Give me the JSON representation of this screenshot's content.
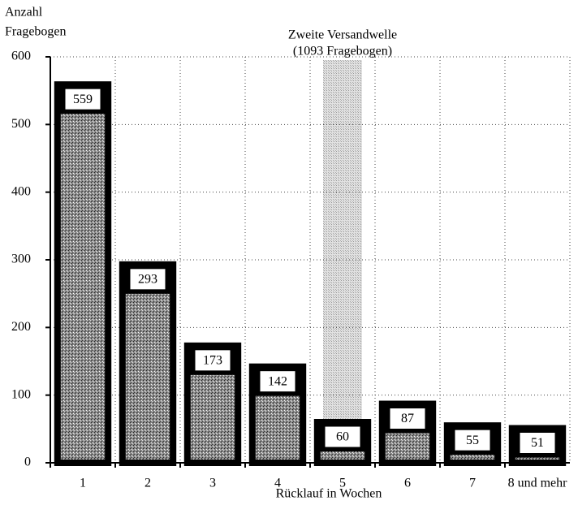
{
  "chart_data": {
    "type": "bar",
    "y_label": [
      "Anzahl",
      "Fragebogen"
    ],
    "x_label": "Rücklauf in Wochen",
    "annotation": [
      "Zweite Versandwelle",
      "(1093 Fragebogen)"
    ],
    "categories": [
      "1",
      "2",
      "3",
      "4",
      "5",
      "6",
      "7",
      "8 und mehr"
    ],
    "values": [
      559,
      293,
      173,
      142,
      60,
      87,
      55,
      51
    ],
    "color": "#6e6e6e",
    "ylim": [
      0,
      600
    ],
    "yticks": [
      0,
      100,
      200,
      300,
      400,
      500,
      600
    ],
    "grid": true
  }
}
